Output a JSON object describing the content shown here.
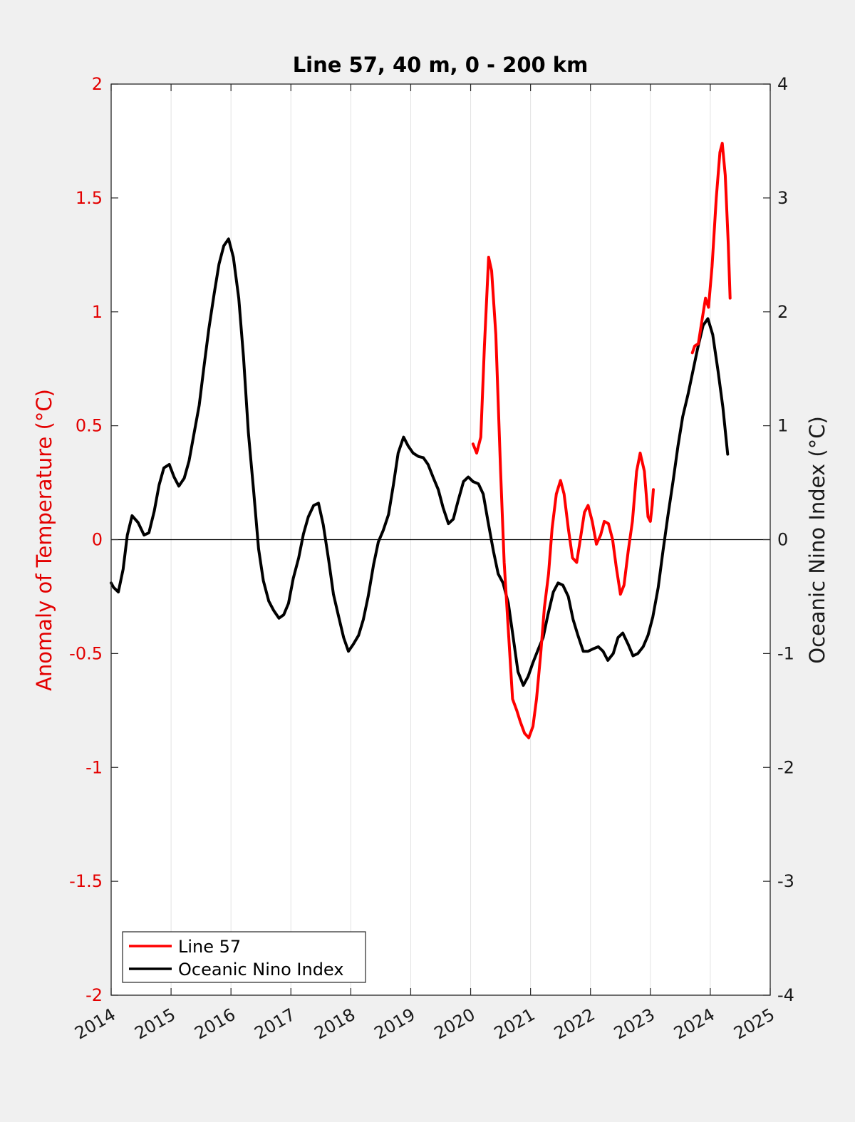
{
  "chart_data": {
    "type": "line",
    "title": "Line 57, 40 m, 0 - 200 km",
    "xlabel": "",
    "ylabel_left": "Anomaly of Temperature (°C)",
    "ylabel_right": "Oceanic Nino Index (°C)",
    "xlim": [
      2014,
      2025
    ],
    "ylim_left": [
      -2,
      2
    ],
    "ylim_right": [
      -4,
      4
    ],
    "x_ticks": [
      "2014",
      "2015",
      "2016",
      "2017",
      "2018",
      "2019",
      "2020",
      "2021",
      "2022",
      "2023",
      "2024",
      "2025"
    ],
    "y_ticks_left": [
      "2",
      "1.5",
      "1",
      "0.5",
      "0",
      "-0.5",
      "-1",
      "-1.5",
      "-2"
    ],
    "y_ticks_right": [
      "4",
      "3",
      "2",
      "1",
      "0",
      "-1",
      "-2",
      "-3",
      "-4"
    ],
    "grid": "vertical",
    "legend_placement": "bottom-left",
    "legend": [
      {
        "label": "Line 57",
        "color": "#ff0000"
      },
      {
        "label": "Oceanic Nino Index",
        "color": "#000000"
      }
    ],
    "series": [
      {
        "name": "Line 57",
        "axis": "left",
        "color": "#ff0000",
        "segments": [
          [
            [
              2020.04,
              0.42
            ],
            [
              2020.1,
              0.38
            ],
            [
              2020.17,
              0.45
            ],
            [
              2020.23,
              0.85
            ],
            [
              2020.3,
              1.24
            ],
            [
              2020.35,
              1.18
            ],
            [
              2020.42,
              0.9
            ],
            [
              2020.5,
              0.3
            ],
            [
              2020.56,
              -0.1
            ],
            [
              2020.63,
              -0.4
            ],
            [
              2020.7,
              -0.7
            ],
            [
              2020.77,
              -0.75
            ],
            [
              2020.83,
              -0.8
            ],
            [
              2020.9,
              -0.85
            ],
            [
              2020.97,
              -0.87
            ],
            [
              2021.04,
              -0.82
            ],
            [
              2021.1,
              -0.7
            ],
            [
              2021.17,
              -0.5
            ],
            [
              2021.23,
              -0.3
            ],
            [
              2021.3,
              -0.15
            ],
            [
              2021.36,
              0.05
            ],
            [
              2021.43,
              0.2
            ],
            [
              2021.5,
              0.26
            ],
            [
              2021.56,
              0.2
            ],
            [
              2021.63,
              0.05
            ],
            [
              2021.7,
              -0.08
            ],
            [
              2021.77,
              -0.1
            ],
            [
              2021.83,
              0.0
            ],
            [
              2021.9,
              0.12
            ],
            [
              2021.96,
              0.15
            ],
            [
              2022.03,
              0.08
            ],
            [
              2022.1,
              -0.02
            ],
            [
              2022.17,
              0.02
            ],
            [
              2022.23,
              0.08
            ],
            [
              2022.3,
              0.07
            ],
            [
              2022.37,
              0.0
            ],
            [
              2022.43,
              -0.12
            ],
            [
              2022.5,
              -0.24
            ],
            [
              2022.56,
              -0.2
            ],
            [
              2022.63,
              -0.05
            ],
            [
              2022.7,
              0.08
            ],
            [
              2022.77,
              0.3
            ],
            [
              2022.83,
              0.38
            ],
            [
              2022.9,
              0.3
            ],
            [
              2022.96,
              0.1
            ],
            [
              2023.0,
              0.08
            ],
            [
              2023.03,
              0.15
            ],
            [
              2023.05,
              0.22
            ]
          ],
          [
            [
              2023.7,
              0.82
            ],
            [
              2023.74,
              0.85
            ],
            [
              2023.8,
              0.86
            ],
            [
              2023.86,
              0.96
            ],
            [
              2023.92,
              1.06
            ],
            [
              2023.97,
              1.02
            ],
            [
              2024.03,
              1.2
            ],
            [
              2024.1,
              1.5
            ],
            [
              2024.16,
              1.7
            ],
            [
              2024.2,
              1.74
            ],
            [
              2024.25,
              1.6
            ],
            [
              2024.3,
              1.3
            ],
            [
              2024.33,
              1.06
            ]
          ]
        ]
      },
      {
        "name": "Oceanic Nino Index",
        "axis": "right",
        "color": "#000000",
        "segments": [
          [
            [
              2014.0,
              -0.38
            ],
            [
              2014.04,
              -0.42
            ],
            [
              2014.12,
              -0.46
            ],
            [
              2014.2,
              -0.26
            ],
            [
              2014.27,
              0.04
            ],
            [
              2014.35,
              0.21
            ],
            [
              2014.45,
              0.15
            ],
            [
              2014.55,
              0.04
            ],
            [
              2014.63,
              0.06
            ],
            [
              2014.72,
              0.25
            ],
            [
              2014.8,
              0.48
            ],
            [
              2014.88,
              0.63
            ],
            [
              2014.97,
              0.66
            ],
            [
              2015.05,
              0.55
            ],
            [
              2015.13,
              0.47
            ],
            [
              2015.22,
              0.54
            ],
            [
              2015.3,
              0.69
            ],
            [
              2015.38,
              0.92
            ],
            [
              2015.47,
              1.18
            ],
            [
              2015.55,
              1.52
            ],
            [
              2015.63,
              1.85
            ],
            [
              2015.72,
              2.16
            ],
            [
              2015.8,
              2.42
            ],
            [
              2015.88,
              2.58
            ],
            [
              2015.96,
              2.64
            ],
            [
              2016.04,
              2.48
            ],
            [
              2016.13,
              2.12
            ],
            [
              2016.21,
              1.6
            ],
            [
              2016.29,
              0.94
            ],
            [
              2016.38,
              0.42
            ],
            [
              2016.46,
              -0.08
            ],
            [
              2016.54,
              -0.36
            ],
            [
              2016.63,
              -0.54
            ],
            [
              2016.71,
              -0.62
            ],
            [
              2016.8,
              -0.69
            ],
            [
              2016.88,
              -0.66
            ],
            [
              2016.96,
              -0.56
            ],
            [
              2017.04,
              -0.34
            ],
            [
              2017.13,
              -0.16
            ],
            [
              2017.21,
              0.05
            ],
            [
              2017.29,
              0.2
            ],
            [
              2017.38,
              0.3
            ],
            [
              2017.46,
              0.32
            ],
            [
              2017.54,
              0.13
            ],
            [
              2017.63,
              -0.18
            ],
            [
              2017.71,
              -0.48
            ],
            [
              2017.79,
              -0.66
            ],
            [
              2017.88,
              -0.86
            ],
            [
              2017.96,
              -0.98
            ],
            [
              2018.04,
              -0.92
            ],
            [
              2018.13,
              -0.84
            ],
            [
              2018.21,
              -0.7
            ],
            [
              2018.29,
              -0.5
            ],
            [
              2018.38,
              -0.22
            ],
            [
              2018.46,
              -0.02
            ],
            [
              2018.54,
              0.08
            ],
            [
              2018.63,
              0.22
            ],
            [
              2018.71,
              0.48
            ],
            [
              2018.79,
              0.76
            ],
            [
              2018.88,
              0.9
            ],
            [
              2018.96,
              0.82
            ],
            [
              2019.04,
              0.76
            ],
            [
              2019.13,
              0.73
            ],
            [
              2019.21,
              0.72
            ],
            [
              2019.29,
              0.66
            ],
            [
              2019.38,
              0.54
            ],
            [
              2019.46,
              0.44
            ],
            [
              2019.54,
              0.28
            ],
            [
              2019.63,
              0.14
            ],
            [
              2019.71,
              0.18
            ],
            [
              2019.79,
              0.34
            ],
            [
              2019.88,
              0.51
            ],
            [
              2019.96,
              0.55
            ],
            [
              2020.04,
              0.51
            ],
            [
              2020.13,
              0.49
            ],
            [
              2020.21,
              0.4
            ],
            [
              2020.29,
              0.16
            ],
            [
              2020.38,
              -0.1
            ],
            [
              2020.46,
              -0.3
            ],
            [
              2020.54,
              -0.38
            ],
            [
              2020.63,
              -0.56
            ],
            [
              2020.71,
              -0.86
            ],
            [
              2020.79,
              -1.16
            ],
            [
              2020.88,
              -1.28
            ],
            [
              2020.96,
              -1.2
            ],
            [
              2021.04,
              -1.08
            ],
            [
              2021.13,
              -0.96
            ],
            [
              2021.21,
              -0.86
            ],
            [
              2021.29,
              -0.66
            ],
            [
              2021.38,
              -0.46
            ],
            [
              2021.46,
              -0.38
            ],
            [
              2021.54,
              -0.4
            ],
            [
              2021.63,
              -0.5
            ],
            [
              2021.71,
              -0.7
            ],
            [
              2021.79,
              -0.84
            ],
            [
              2021.88,
              -0.98
            ],
            [
              2021.96,
              -0.98
            ],
            [
              2022.04,
              -0.96
            ],
            [
              2022.13,
              -0.94
            ],
            [
              2022.21,
              -0.98
            ],
            [
              2022.29,
              -1.06
            ],
            [
              2022.38,
              -1.0
            ],
            [
              2022.46,
              -0.86
            ],
            [
              2022.54,
              -0.82
            ],
            [
              2022.63,
              -0.92
            ],
            [
              2022.71,
              -1.02
            ],
            [
              2022.79,
              -1.0
            ],
            [
              2022.88,
              -0.94
            ],
            [
              2022.96,
              -0.84
            ],
            [
              2023.04,
              -0.68
            ],
            [
              2023.13,
              -0.42
            ],
            [
              2023.21,
              -0.1
            ],
            [
              2023.29,
              0.2
            ],
            [
              2023.38,
              0.52
            ],
            [
              2023.46,
              0.82
            ],
            [
              2023.54,
              1.08
            ],
            [
              2023.63,
              1.28
            ],
            [
              2023.71,
              1.48
            ],
            [
              2023.79,
              1.68
            ],
            [
              2023.88,
              1.88
            ],
            [
              2023.96,
              1.94
            ],
            [
              2024.04,
              1.8
            ],
            [
              2024.13,
              1.48
            ],
            [
              2024.21,
              1.16
            ],
            [
              2024.29,
              0.75
            ]
          ]
        ]
      }
    ]
  }
}
